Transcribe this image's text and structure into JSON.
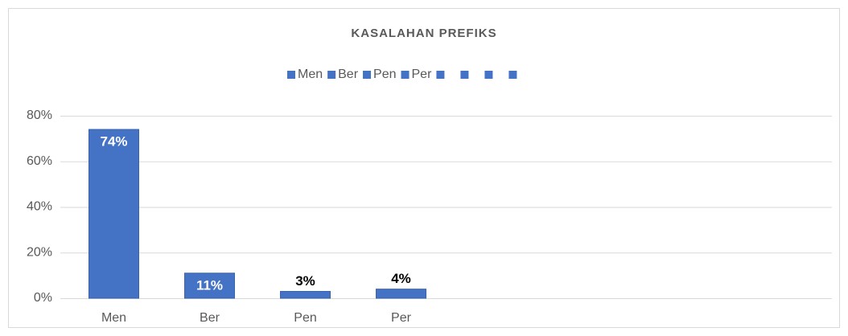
{
  "chart_data": {
    "type": "bar",
    "title": "KASALAHAN PREFIKS",
    "categories": [
      "Men",
      "Ber",
      "Pen",
      "Per",
      null,
      null,
      null,
      null
    ],
    "values": [
      74,
      11,
      3,
      4,
      null,
      null,
      null,
      null
    ],
    "value_labels": [
      "74%",
      "11%",
      "3%",
      "4%",
      null,
      null,
      null,
      null
    ],
    "color": "#4472c4",
    "ylim": [
      0,
      80
    ],
    "yticks": [
      {
        "value": 0,
        "label": "0%"
      },
      {
        "value": 20,
        "label": "20%"
      },
      {
        "value": 40,
        "label": "40%"
      },
      {
        "value": 60,
        "label": "60%"
      },
      {
        "value": 80,
        "label": "80%"
      }
    ],
    "grid": true,
    "legend": "top"
  }
}
